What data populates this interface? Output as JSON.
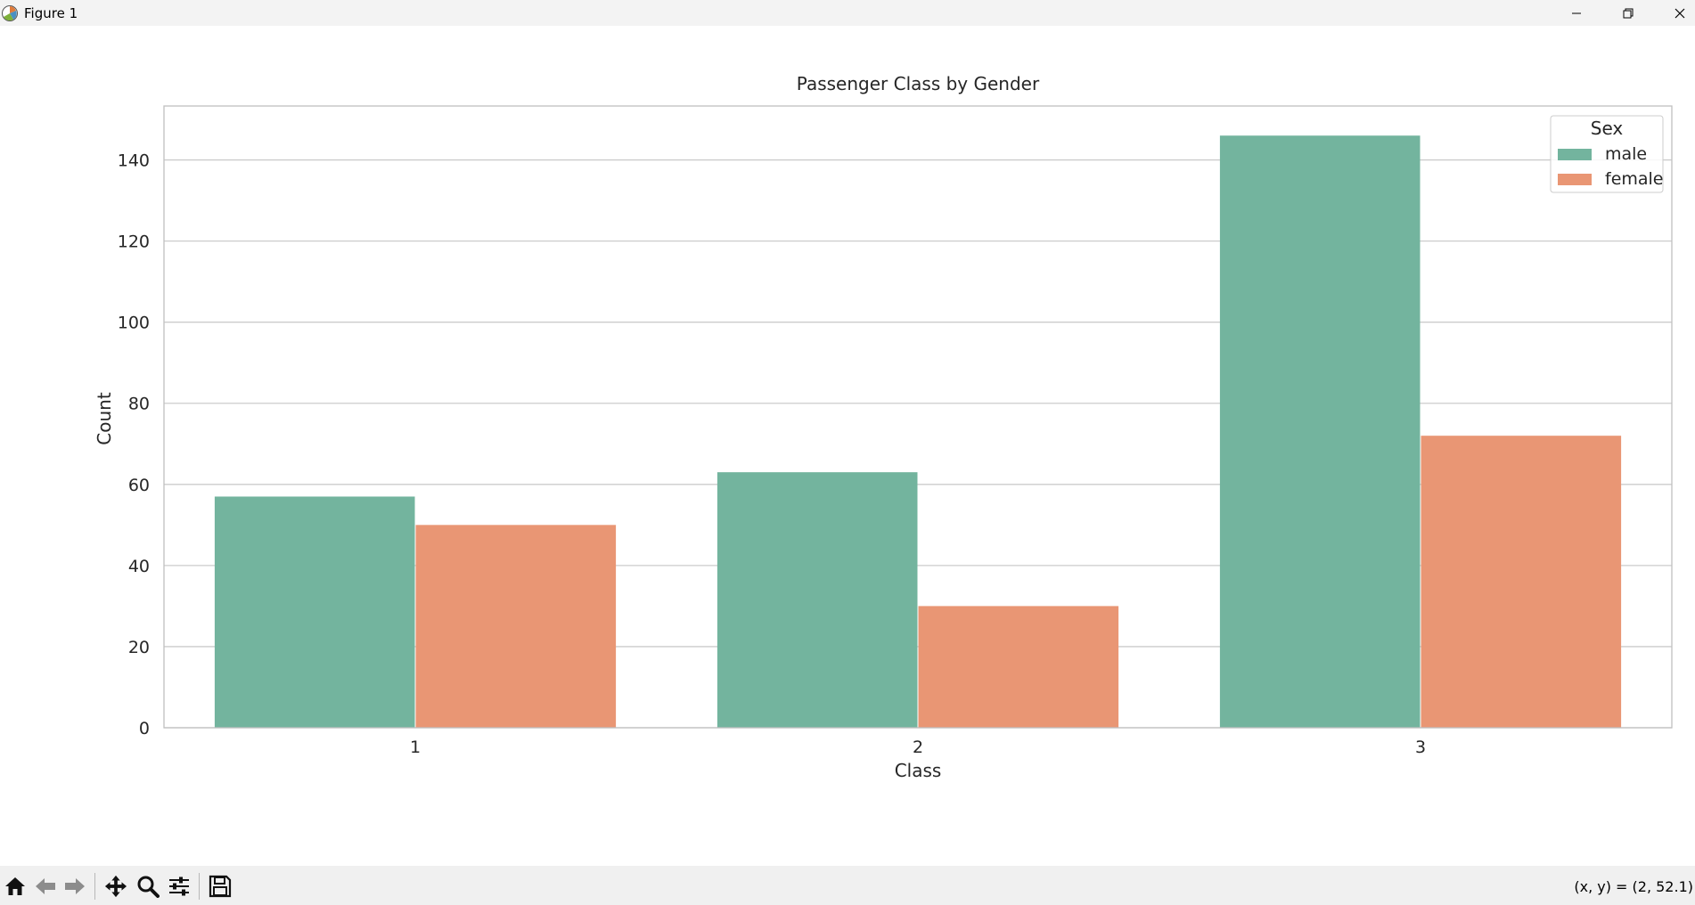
{
  "window": {
    "title": "Figure 1"
  },
  "toolbar": {
    "buttons": [
      "home-icon",
      "back-arrow-icon",
      "forward-arrow-icon",
      "pan-icon",
      "zoom-icon",
      "configure-subplots-icon",
      "save-icon"
    ],
    "coords": "(x, y) = (2, 52.1)"
  },
  "colors": {
    "male": "#73b49e",
    "female": "#e99674",
    "grid": "#cccccc",
    "axes": "#c0c0c0"
  },
  "chart_data": {
    "type": "bar",
    "title": "Passenger Class by Gender",
    "xlabel": "Class",
    "ylabel": "Count",
    "categories": [
      "1",
      "2",
      "3"
    ],
    "series": [
      {
        "name": "male",
        "values": [
          57,
          63,
          146
        ]
      },
      {
        "name": "female",
        "values": [
          50,
          30,
          72
        ]
      }
    ],
    "ylim": [
      0,
      153.3
    ],
    "yticks": [
      0,
      20,
      40,
      60,
      80,
      100,
      120,
      140
    ],
    "grid": true,
    "legend": {
      "title": "Sex",
      "placement": "top-right"
    }
  }
}
